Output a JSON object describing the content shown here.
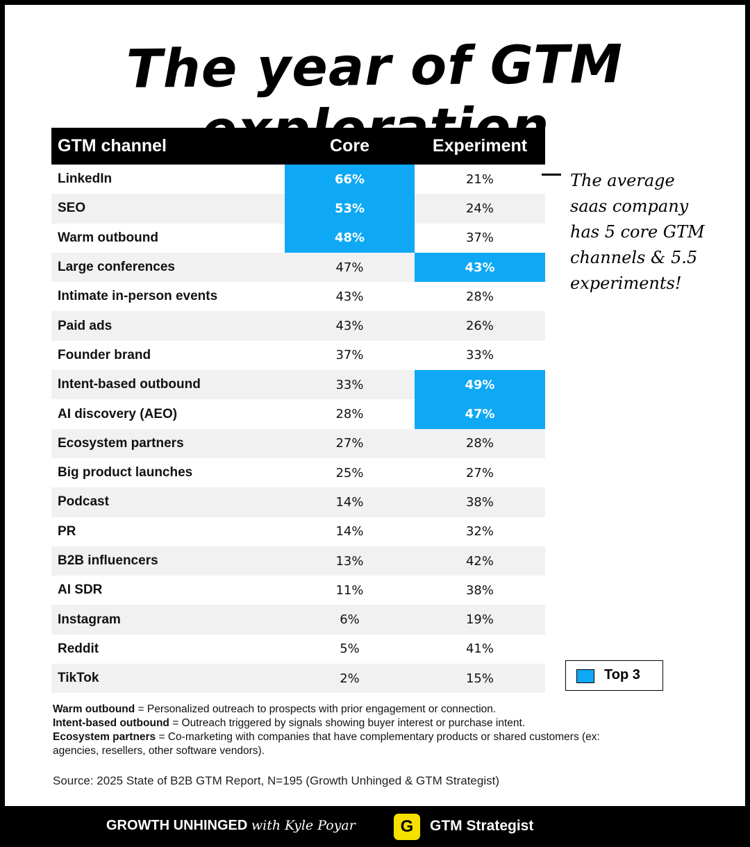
{
  "title": "The year of GTM exploration",
  "table": {
    "headers": {
      "channel": "GTM channel",
      "core": "Core",
      "experiment": "Experiment"
    },
    "rows": [
      {
        "channel": "LinkedIn",
        "core": "66%",
        "experiment": "21%",
        "core_top3": true,
        "exp_top3": false
      },
      {
        "channel": "SEO",
        "core": "53%",
        "experiment": "24%",
        "core_top3": true,
        "exp_top3": false
      },
      {
        "channel": "Warm outbound",
        "core": "48%",
        "experiment": "37%",
        "core_top3": true,
        "exp_top3": false
      },
      {
        "channel": "Large conferences",
        "core": "47%",
        "experiment": "43%",
        "core_top3": false,
        "exp_top3": true
      },
      {
        "channel": "Intimate in-person events",
        "core": "43%",
        "experiment": "28%",
        "core_top3": false,
        "exp_top3": false
      },
      {
        "channel": "Paid ads",
        "core": "43%",
        "experiment": "26%",
        "core_top3": false,
        "exp_top3": false
      },
      {
        "channel": "Founder brand",
        "core": "37%",
        "experiment": "33%",
        "core_top3": false,
        "exp_top3": false
      },
      {
        "channel": "Intent-based outbound",
        "core": "33%",
        "experiment": "49%",
        "core_top3": false,
        "exp_top3": true
      },
      {
        "channel": "AI discovery (AEO)",
        "core": "28%",
        "experiment": "47%",
        "core_top3": false,
        "exp_top3": true
      },
      {
        "channel": "Ecosystem partners",
        "core": "27%",
        "experiment": "28%",
        "core_top3": false,
        "exp_top3": false
      },
      {
        "channel": "Big product launches",
        "core": "25%",
        "experiment": "27%",
        "core_top3": false,
        "exp_top3": false
      },
      {
        "channel": "Podcast",
        "core": "14%",
        "experiment": "38%",
        "core_top3": false,
        "exp_top3": false
      },
      {
        "channel": "PR",
        "core": "14%",
        "experiment": "32%",
        "core_top3": false,
        "exp_top3": false
      },
      {
        "channel": "B2B influencers",
        "core": "13%",
        "experiment": "42%",
        "core_top3": false,
        "exp_top3": false
      },
      {
        "channel": "AI SDR",
        "core": "11%",
        "experiment": "38%",
        "core_top3": false,
        "exp_top3": false
      },
      {
        "channel": "Instagram",
        "core": "6%",
        "experiment": "19%",
        "core_top3": false,
        "exp_top3": false
      },
      {
        "channel": "Reddit",
        "core": "5%",
        "experiment": "41%",
        "core_top3": false,
        "exp_top3": false
      },
      {
        "channel": "TikTok",
        "core": "2%",
        "experiment": "15%",
        "core_top3": false,
        "exp_top3": false
      }
    ]
  },
  "highlight_color": "#0ea8f4",
  "annotation": {
    "lines": [
      "The average",
      "saas company",
      "has 5 core GTM",
      "channels & 5.5",
      "experiments!"
    ]
  },
  "legend": {
    "label": "Top 3"
  },
  "definitions": [
    {
      "term": "Warm outbound",
      "text": " = Personalized outreach to prospects with prior engagement or connection."
    },
    {
      "term": "Intent-based outbound",
      "text": " = Outreach triggered by signals showing buyer interest or purchase intent."
    },
    {
      "term": "Ecosystem partners",
      "text": " = Co-marketing with companies that have complementary products or shared customers (ex: agencies, resellers, other software vendors)."
    }
  ],
  "source": "Source: 2025 State of B2B GTM Report, N=195 (Growth Unhinged & GTM Strategist)",
  "footer": {
    "brand1": "GROWTH UNHINGED",
    "brand1_with": "with Kyle Poyar",
    "logo_letter": "G",
    "brand2": "GTM Strategist"
  }
}
